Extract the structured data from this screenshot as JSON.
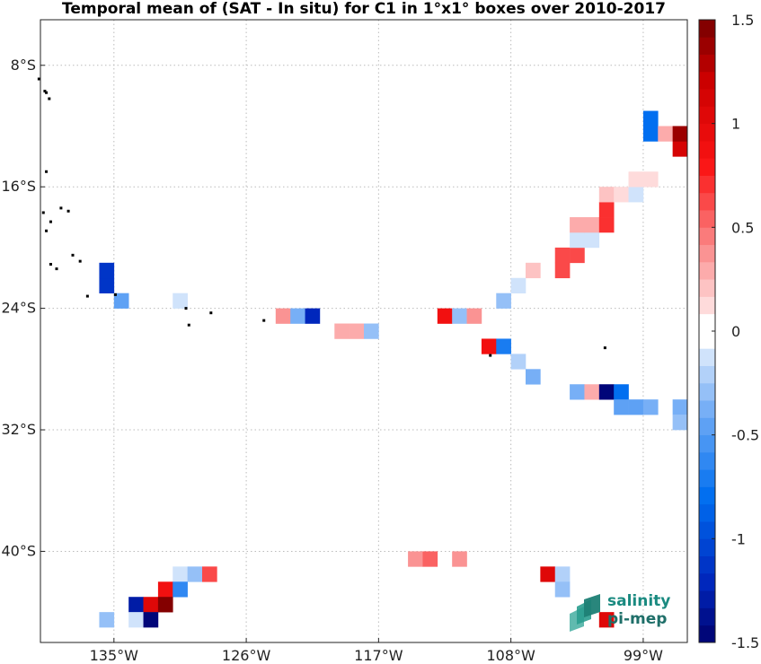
{
  "title": "Temporal mean of (SAT - In situ) for C1 in 1°x1° boxes over 2010-2017",
  "map": {
    "lon_range": [
      -140,
      -96
    ],
    "lat_range": [
      -46,
      -5
    ],
    "x_ticks": [
      {
        "lon": -135,
        "label": "135°W"
      },
      {
        "lon": -126,
        "label": "126°W"
      },
      {
        "lon": -117,
        "label": "117°W"
      },
      {
        "lon": -108,
        "label": "108°W"
      },
      {
        "lon": -99,
        "label": "99°W"
      }
    ],
    "y_ticks": [
      {
        "lat": -8,
        "label": "8°S"
      },
      {
        "lat": -16,
        "label": "16°S"
      },
      {
        "lat": -24,
        "label": "24°S"
      },
      {
        "lat": -32,
        "label": "32°S"
      },
      {
        "lat": -40,
        "label": "40°S"
      }
    ],
    "grid": true,
    "cells": [
      [
        -135.5,
        -22.5,
        -1.1
      ],
      [
        -135.5,
        -21.5,
        -1.1
      ],
      [
        -134.5,
        -23.5,
        -0.5
      ],
      [
        -130.5,
        -23.5,
        -0.1
      ],
      [
        -123.5,
        -24.5,
        0.4
      ],
      [
        -122.5,
        -24.5,
        -0.4
      ],
      [
        -121.5,
        -24.5,
        -1.2
      ],
      [
        -119.5,
        -25.5,
        0.3
      ],
      [
        -118.5,
        -25.5,
        0.3
      ],
      [
        -117.5,
        -25.5,
        -0.3
      ],
      [
        -112.5,
        -24.5,
        0.9
      ],
      [
        -111.5,
        -24.5,
        -0.3
      ],
      [
        -110.5,
        -24.5,
        0.4
      ],
      [
        -109.5,
        -26.5,
        0.9
      ],
      [
        -108.5,
        -26.5,
        -0.7
      ],
      [
        -108.5,
        -23.5,
        -0.3
      ],
      [
        -107.5,
        -27.5,
        -0.2
      ],
      [
        -107.5,
        -22.5,
        -0.1
      ],
      [
        -106.5,
        -28.5,
        -0.4
      ],
      [
        -106.5,
        -21.5,
        0.2
      ],
      [
        -103.5,
        -29.5,
        -0.4
      ],
      [
        -102.5,
        -29.5,
        0.3
      ],
      [
        -101.5,
        -29.5,
        -1.5
      ],
      [
        -100.5,
        -29.5,
        -0.8
      ],
      [
        -100.5,
        -30.5,
        -0.5
      ],
      [
        -99.5,
        -30.5,
        -0.5
      ],
      [
        -98.5,
        -30.5,
        -0.4
      ],
      [
        -96.5,
        -30.5,
        -0.4
      ],
      [
        -96.5,
        -31.5,
        -0.3
      ],
      [
        -104.5,
        -20.5,
        0.6
      ],
      [
        -104.5,
        -21.5,
        0.6
      ],
      [
        -103.5,
        -20.5,
        0.6
      ],
      [
        -103.5,
        -19.5,
        -0.1
      ],
      [
        -102.5,
        -19.5,
        -0.1
      ],
      [
        -103.5,
        -18.5,
        0.3
      ],
      [
        -102.5,
        -18.5,
        0.3
      ],
      [
        -101.5,
        -18.5,
        0.7
      ],
      [
        -101.5,
        -17.5,
        0.7
      ],
      [
        -101.5,
        -16.5,
        0.2
      ],
      [
        -100.5,
        -16.5,
        0.1
      ],
      [
        -99.5,
        -16.5,
        -0.1
      ],
      [
        -99.5,
        -15.5,
        0.1
      ],
      [
        -98.5,
        -15.5,
        0.1
      ],
      [
        -98.5,
        -12.5,
        -0.8
      ],
      [
        -98.5,
        -11.5,
        -0.8
      ],
      [
        -96.5,
        -13.5,
        1.1
      ],
      [
        -97.5,
        -12.5,
        0.3
      ],
      [
        -96.5,
        -12.5,
        1.4
      ],
      [
        -114.5,
        -40.5,
        0.4
      ],
      [
        -113.5,
        -40.5,
        0.5
      ],
      [
        -111.5,
        -40.5,
        0.4
      ],
      [
        -105.5,
        -41.5,
        1.0
      ],
      [
        -104.5,
        -41.5,
        -0.2
      ],
      [
        -104.5,
        -42.5,
        -0.3
      ],
      [
        -130.5,
        -41.5,
        -0.1
      ],
      [
        -129.5,
        -41.5,
        -0.3
      ],
      [
        -128.5,
        -41.5,
        0.6
      ],
      [
        -131.5,
        -42.5,
        0.9
      ],
      [
        -130.5,
        -42.5,
        -0.6
      ],
      [
        -133.5,
        -43.5,
        -1.3
      ],
      [
        -132.5,
        -43.5,
        1.0
      ],
      [
        -131.5,
        -43.5,
        1.5
      ],
      [
        -135.5,
        -44.5,
        -0.3
      ],
      [
        -133.5,
        -44.5,
        -0.1
      ],
      [
        -132.5,
        -44.5,
        -1.5
      ],
      [
        -101.5,
        -44.5,
        1.0
      ]
    ],
    "islands": [
      [
        -140.1,
        -8.9
      ],
      [
        -139.7,
        -9.7
      ],
      [
        -139.6,
        -9.8
      ],
      [
        -139.4,
        -10.2
      ],
      [
        -139.6,
        -15.0
      ],
      [
        -139.8,
        -17.7
      ],
      [
        -138.6,
        -17.4
      ],
      [
        -138.1,
        -17.6
      ],
      [
        -139.3,
        -18.3
      ],
      [
        -139.6,
        -18.9
      ],
      [
        -137.8,
        -20.5
      ],
      [
        -137.3,
        -20.9
      ],
      [
        -138.9,
        -21.4
      ],
      [
        -139.3,
        -21.1
      ],
      [
        -134.9,
        -23.1
      ],
      [
        -136.8,
        -23.2
      ],
      [
        -130.1,
        -24.0
      ],
      [
        -128.4,
        -24.3
      ],
      [
        -124.8,
        -24.8
      ],
      [
        -109.4,
        -27.1
      ],
      [
        -101.6,
        -26.6
      ],
      [
        -129.9,
        -25.1
      ]
    ]
  },
  "colorbar": {
    "min": -1.5,
    "max": 1.5,
    "tick_values": [
      1.5,
      1,
      0.5,
      0,
      -0.5,
      -1,
      -1.5
    ],
    "tick_labels": [
      "1.5",
      "1",
      "0.5",
      "0",
      "-0.5",
      "-1",
      "-1.5"
    ]
  },
  "logo": {
    "line1": "salinity",
    "line2": "pi-mep"
  }
}
